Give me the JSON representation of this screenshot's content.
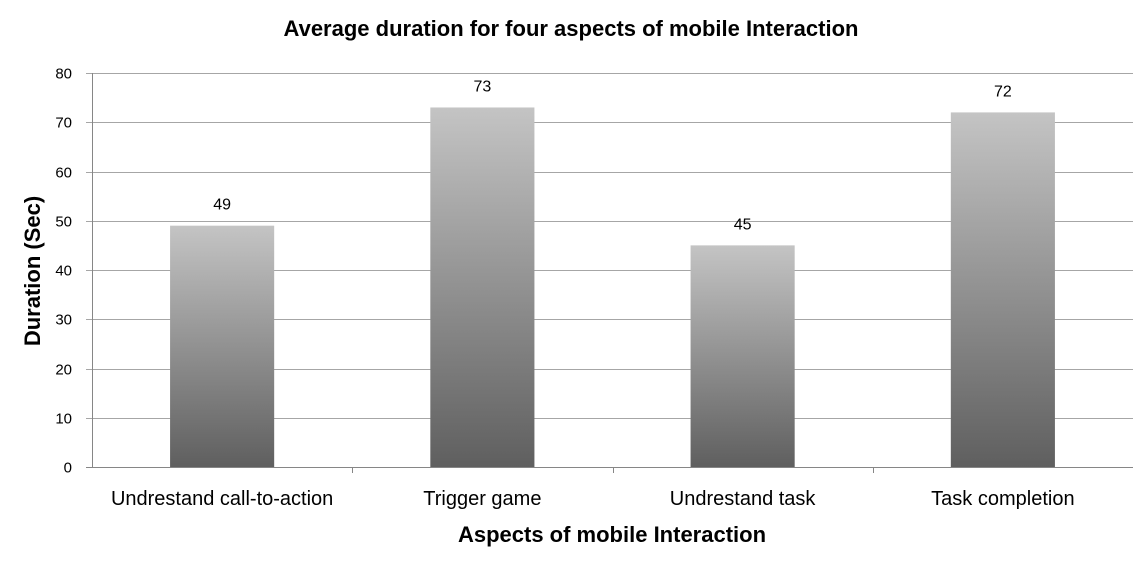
{
  "chart_data": {
    "type": "bar",
    "title": "Average duration for four aspects of mobile Interaction",
    "xlabel": "Aspects of mobile Interaction",
    "ylabel": "Duration (Sec)",
    "categories": [
      "Undrestand call-to-action",
      "Trigger game",
      "Undrestand task",
      "Task completion"
    ],
    "values": [
      49,
      73,
      45,
      72
    ],
    "data_labels": [
      "49",
      "73",
      "45",
      "72"
    ],
    "ylim": [
      0,
      80
    ],
    "yticks": [
      0,
      10,
      20,
      30,
      40,
      50,
      60,
      70,
      80
    ],
    "grid": true,
    "legend": "none",
    "colors": {
      "bar_top": "#c4c4c4",
      "bar_bottom": "#5f5f5f",
      "grid": "#a6a6a6"
    }
  }
}
